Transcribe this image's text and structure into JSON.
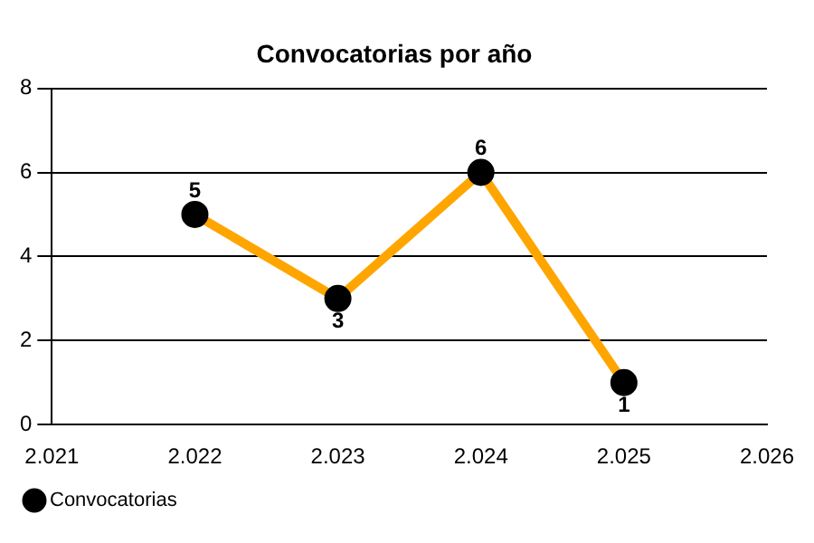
{
  "chart_data": {
    "type": "line",
    "title": "Convocatorias por año",
    "x": [
      2022,
      2023,
      2024,
      2025
    ],
    "series": [
      {
        "name": "Convocatorias",
        "color": "#ffa500",
        "values": [
          5,
          3,
          6,
          1
        ]
      }
    ],
    "xlim": [
      2021,
      2026
    ],
    "xticks": [
      {
        "value": 2021,
        "label": "2.021"
      },
      {
        "value": 2022,
        "label": "2.022"
      },
      {
        "value": 2023,
        "label": "2.023"
      },
      {
        "value": 2024,
        "label": "2.024"
      },
      {
        "value": 2025,
        "label": "2.025"
      },
      {
        "value": 2026,
        "label": "2.026"
      }
    ],
    "ylim": [
      0,
      8
    ],
    "yticks": [
      0,
      2,
      4,
      6,
      8
    ],
    "grid": "y",
    "legend": "bottom left",
    "marker": "circle",
    "line_style": "solid",
    "data_labels": true
  }
}
